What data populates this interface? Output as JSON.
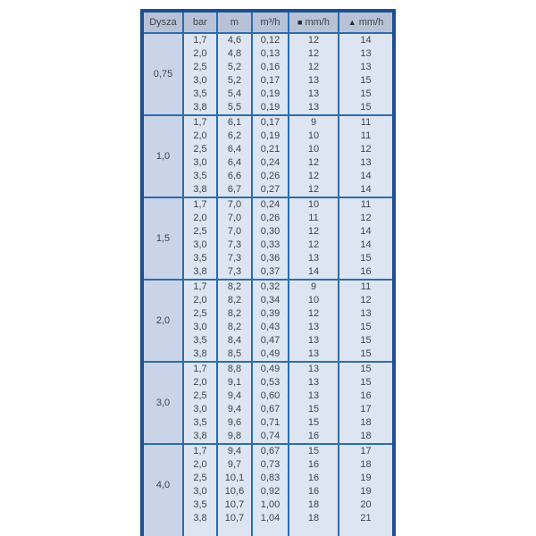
{
  "colors": {
    "outer_border": "#1d4f90",
    "grid_line": "#2d6cad",
    "header_bg": "#b7c2d7",
    "dysza_column_bg": "#c9d4e8",
    "cell_bg": "#dce5f1",
    "text": "#3f444c",
    "page_bg": "#ffffff"
  },
  "chart_data": {
    "type": "table",
    "title": "",
    "headers": [
      {
        "id": "dysza",
        "label": "Dysza",
        "icon": null
      },
      {
        "id": "bar",
        "label": "bar",
        "icon": null
      },
      {
        "id": "m",
        "label": "m",
        "icon": null
      },
      {
        "id": "m3h",
        "label": "m³/h",
        "icon": null
      },
      {
        "id": "mmh-square",
        "label": "mm/h",
        "icon": "square"
      },
      {
        "id": "mmh-triangle",
        "label": "mm/h",
        "icon": "triangle"
      }
    ],
    "groups": [
      {
        "dysza": "0,75",
        "rows": [
          [
            "1,7",
            "4,6",
            "0,12",
            "12",
            "14"
          ],
          [
            "2,0",
            "4,8",
            "0,13",
            "12",
            "13"
          ],
          [
            "2,5",
            "5,2",
            "0,16",
            "12",
            "13"
          ],
          [
            "3,0",
            "5,2",
            "0,17",
            "13",
            "15"
          ],
          [
            "3,5",
            "5,4",
            "0,19",
            "13",
            "15"
          ],
          [
            "3,8",
            "5,5",
            "0,19",
            "13",
            "15"
          ]
        ]
      },
      {
        "dysza": "1,0",
        "rows": [
          [
            "1,7",
            "6,1",
            "0,17",
            "9",
            "11"
          ],
          [
            "2,0",
            "6,2",
            "0,19",
            "10",
            "11"
          ],
          [
            "2,5",
            "6,4",
            "0,21",
            "10",
            "12"
          ],
          [
            "3,0",
            "6,4",
            "0,24",
            "12",
            "13"
          ],
          [
            "3,5",
            "6,6",
            "0,26",
            "12",
            "14"
          ],
          [
            "3,8",
            "6,7",
            "0,27",
            "12",
            "14"
          ]
        ]
      },
      {
        "dysza": "1,5",
        "rows": [
          [
            "1,7",
            "7,0",
            "0,24",
            "10",
            "11"
          ],
          [
            "2,0",
            "7,0",
            "0,26",
            "11",
            "12"
          ],
          [
            "2,5",
            "7,0",
            "0,30",
            "12",
            "14"
          ],
          [
            "3,0",
            "7,3",
            "0,33",
            "12",
            "14"
          ],
          [
            "3,5",
            "7,3",
            "0,36",
            "13",
            "15"
          ],
          [
            "3,8",
            "7,3",
            "0,37",
            "14",
            "16"
          ]
        ]
      },
      {
        "dysza": "2,0",
        "rows": [
          [
            "1,7",
            "8,2",
            "0,32",
            "9",
            "11"
          ],
          [
            "2,0",
            "8,2",
            "0,34",
            "10",
            "12"
          ],
          [
            "2,5",
            "8,2",
            "0,39",
            "12",
            "13"
          ],
          [
            "3,0",
            "8,2",
            "0,43",
            "13",
            "15"
          ],
          [
            "3,5",
            "8,4",
            "0,47",
            "13",
            "15"
          ],
          [
            "3,8",
            "8,5",
            "0,49",
            "13",
            "15"
          ]
        ]
      },
      {
        "dysza": "3,0",
        "rows": [
          [
            "1,7",
            "8,8",
            "0,49",
            "13",
            "15"
          ],
          [
            "2,0",
            "9,1",
            "0,53",
            "13",
            "15"
          ],
          [
            "2,5",
            "9,4",
            "0,60",
            "13",
            "16"
          ],
          [
            "3,0",
            "9,4",
            "0,67",
            "15",
            "17"
          ],
          [
            "3,5",
            "9,6",
            "0,71",
            "15",
            "18"
          ],
          [
            "3,8",
            "9,8",
            "0,74",
            "16",
            "18"
          ]
        ]
      },
      {
        "dysza": "4,0",
        "rows": [
          [
            "1,7",
            "9,4",
            "0,67",
            "15",
            "17"
          ],
          [
            "2,0",
            "9,7",
            "0,73",
            "16",
            "18"
          ],
          [
            "2,5",
            "10,1",
            "0,83",
            "16",
            "19"
          ],
          [
            "3,0",
            "10,6",
            "0,92",
            "16",
            "19"
          ],
          [
            "3,5",
            "10,7",
            "1,00",
            "18",
            "20"
          ],
          [
            "3,8",
            "10,7",
            "1,04",
            "18",
            "21"
          ]
        ]
      }
    ]
  }
}
